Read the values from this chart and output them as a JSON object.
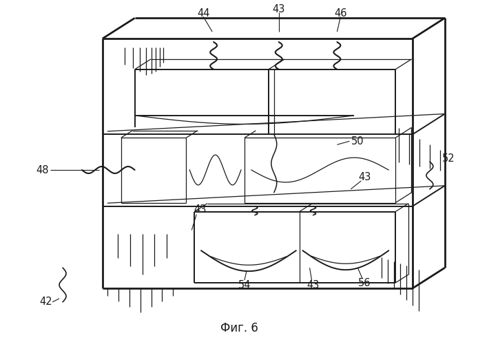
{
  "title": "Фиг. 6",
  "title_fontsize": 12,
  "background_color": "#ffffff",
  "line_color": "#1a1a1a",
  "label_fontsize": 10.5,
  "fig_w": 6.94,
  "fig_h": 5.0,
  "dpi": 100
}
